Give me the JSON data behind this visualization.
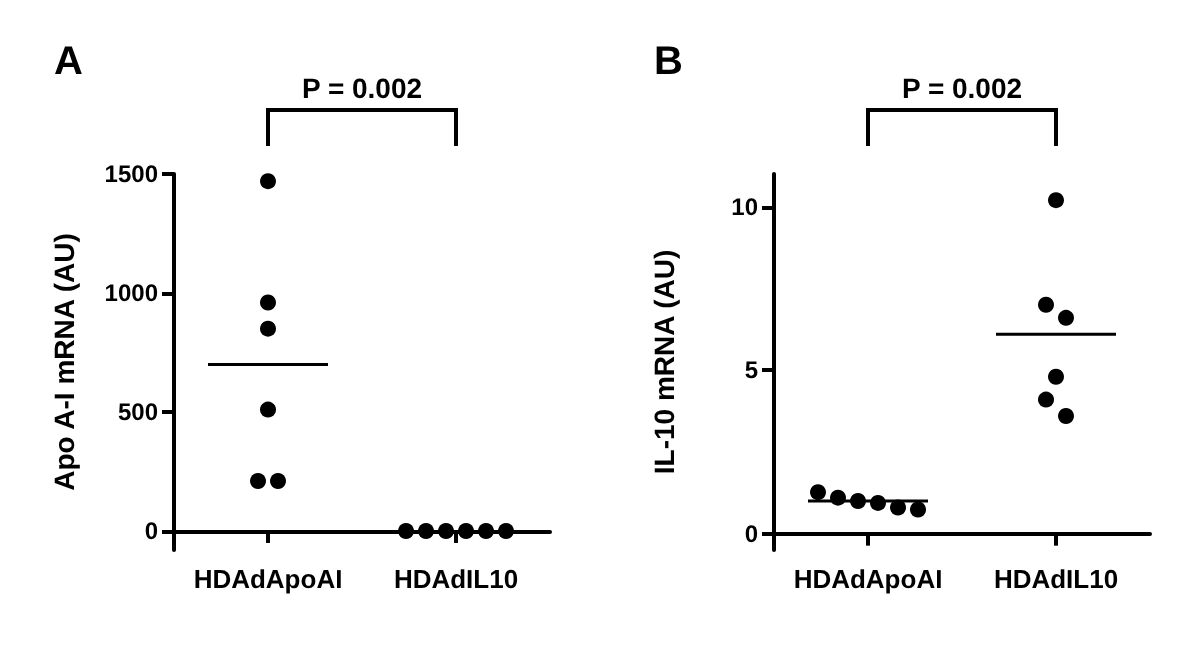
{
  "chart_data": [
    {
      "type": "scatter",
      "title": "A",
      "ylabel": "Apo A-I mRNA (AU)",
      "categories": [
        "HDAdApoAI",
        "HDAdIL10"
      ],
      "ylim": [
        -80,
        1500
      ],
      "yticks": [
        0,
        500,
        1000,
        1500
      ],
      "marker": "circle",
      "annotations": [
        "P = 0.002"
      ],
      "series": [
        {
          "color": "#000000",
          "x": [
            "HDAdApoAI",
            "HDAdApoAI",
            "HDAdApoAI",
            "HDAdApoAI",
            "HDAdApoAI",
            "HDAdApoAI",
            "HDAdIL10",
            "HDAdIL10",
            "HDAdIL10",
            "HDAdIL10",
            "HDAdIL10",
            "HDAdIL10"
          ],
          "values": [
            1470,
            960,
            850,
            510,
            210,
            210,
            0,
            0,
            0,
            0,
            0,
            0
          ]
        },
        {
          "type": "box",
          "color": "#000000",
          "boxes": [
            {
              "low": 700,
              "q1": 700,
              "median": 700,
              "q3": 700,
              "high": 700
            },
            null
          ]
        }
      ]
    },
    {
      "type": "scatter",
      "title": "B",
      "ylabel": "IL-10 mRNA (AU)",
      "categories": [
        "HDAdApoAI",
        "HDAdIL10"
      ],
      "ylim": [
        -0.5,
        11
      ],
      "yticks": [
        0,
        5,
        10
      ],
      "marker": "circle",
      "annotations": [
        "P = 0.002"
      ],
      "series": [
        {
          "color": "#000000",
          "x": [
            "HDAdApoAI",
            "HDAdApoAI",
            "HDAdApoAI",
            "HDAdApoAI",
            "HDAdApoAI",
            "HDAdApoAI",
            "HDAdIL10",
            "HDAdIL10",
            "HDAdIL10",
            "HDAdIL10",
            "HDAdIL10",
            "HDAdIL10"
          ],
          "values": [
            1.1,
            0.94,
            0.74,
            0.8,
            1.0,
            1.27,
            10.2,
            7.0,
            6.6,
            4.8,
            4.1,
            3.6
          ]
        },
        {
          "type": "box",
          "color": "#000000",
          "boxes": [
            {
              "low": 1.0,
              "q1": 1.0,
              "median": 1.0,
              "q3": 1.0,
              "high": 1.0
            },
            {
              "low": 6.1,
              "q1": 6.1,
              "median": 6.1,
              "q3": 6.1,
              "high": 6.1
            }
          ]
        }
      ]
    }
  ]
}
